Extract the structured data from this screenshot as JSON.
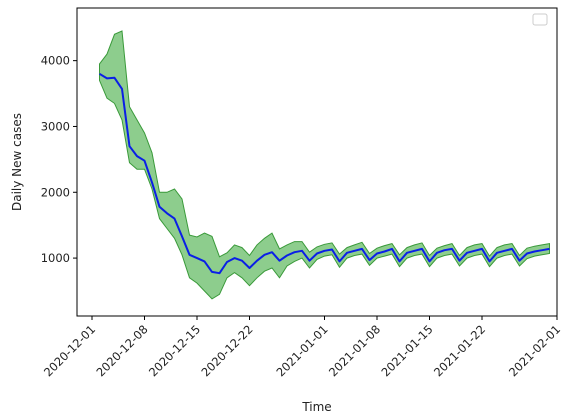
{
  "chart_data": {
    "type": "line",
    "title": "",
    "xlabel": "Time",
    "ylabel": "Daily New cases",
    "xlim": [
      "2020-11-29",
      "2021-02-01"
    ],
    "ylim": [
      120,
      4800
    ],
    "x_ticks": [
      "2020-12-01",
      "2020-12-08",
      "2020-12-15",
      "2020-12-22",
      "2021-01-01",
      "2021-01-08",
      "2021-01-15",
      "2021-01-22",
      "2021-02-01"
    ],
    "y_ticks": [
      1000,
      2000,
      3000,
      4000
    ],
    "grid": false,
    "legend": {
      "placement": "top-right",
      "entries": []
    },
    "colors": {
      "line": "#0a1fe6",
      "band_fill": "#5cb85c",
      "band_edge": "#3a9a3a"
    },
    "series": [
      {
        "kind": "line",
        "x": [
          "2020-12-02",
          "2020-12-03",
          "2020-12-04",
          "2020-12-05",
          "2020-12-06",
          "2020-12-07",
          "2020-12-08",
          "2020-12-09",
          "2020-12-10",
          "2020-12-11",
          "2020-12-12",
          "2020-12-13",
          "2020-12-14",
          "2020-12-15",
          "2020-12-16",
          "2020-12-17",
          "2020-12-18",
          "2020-12-19",
          "2020-12-20",
          "2020-12-21",
          "2020-12-22",
          "2020-12-23",
          "2020-12-24",
          "2020-12-25",
          "2020-12-26",
          "2020-12-27",
          "2020-12-28",
          "2020-12-29",
          "2020-12-30",
          "2020-12-31",
          "2021-01-01",
          "2021-01-02",
          "2021-01-03",
          "2021-01-04",
          "2021-01-05",
          "2021-01-06",
          "2021-01-07",
          "2021-01-08",
          "2021-01-09",
          "2021-01-10",
          "2021-01-11",
          "2021-01-12",
          "2021-01-13",
          "2021-01-14",
          "2021-01-15",
          "2021-01-16",
          "2021-01-17",
          "2021-01-18",
          "2021-01-19",
          "2021-01-20",
          "2021-01-21",
          "2021-01-22",
          "2021-01-23",
          "2021-01-24",
          "2021-01-25",
          "2021-01-26",
          "2021-01-27",
          "2021-01-28",
          "2021-01-29",
          "2021-01-30",
          "2021-01-31"
        ],
        "values": [
          3800,
          3730,
          3740,
          3570,
          2700,
          2550,
          2480,
          2150,
          1780,
          1680,
          1600,
          1330,
          1050,
          1000,
          950,
          790,
          770,
          940,
          1000,
          960,
          850,
          960,
          1050,
          1090,
          960,
          1040,
          1090,
          1110,
          960,
          1070,
          1110,
          1130,
          950,
          1080,
          1110,
          1140,
          970,
          1070,
          1100,
          1140,
          950,
          1080,
          1110,
          1140,
          950,
          1080,
          1120,
          1140,
          960,
          1080,
          1110,
          1140,
          950,
          1080,
          1110,
          1140,
          960,
          1070,
          1100,
          1120,
          1140
        ]
      },
      {
        "kind": "band",
        "x": [
          "2020-12-02",
          "2020-12-03",
          "2020-12-04",
          "2020-12-05",
          "2020-12-06",
          "2020-12-07",
          "2020-12-08",
          "2020-12-09",
          "2020-12-10",
          "2020-12-11",
          "2020-12-12",
          "2020-12-13",
          "2020-12-14",
          "2020-12-15",
          "2020-12-16",
          "2020-12-17",
          "2020-12-18",
          "2020-12-19",
          "2020-12-20",
          "2020-12-21",
          "2020-12-22",
          "2020-12-23",
          "2020-12-24",
          "2020-12-25",
          "2020-12-26",
          "2020-12-27",
          "2020-12-28",
          "2020-12-29",
          "2020-12-30",
          "2020-12-31",
          "2021-01-01",
          "2021-01-02",
          "2021-01-03",
          "2021-01-04",
          "2021-01-05",
          "2021-01-06",
          "2021-01-07",
          "2021-01-08",
          "2021-01-09",
          "2021-01-10",
          "2021-01-11",
          "2021-01-12",
          "2021-01-13",
          "2021-01-14",
          "2021-01-15",
          "2021-01-16",
          "2021-01-17",
          "2021-01-18",
          "2021-01-19",
          "2021-01-20",
          "2021-01-21",
          "2021-01-22",
          "2021-01-23",
          "2021-01-24",
          "2021-01-25",
          "2021-01-26",
          "2021-01-27",
          "2021-01-28",
          "2021-01-29",
          "2021-01-30",
          "2021-01-31"
        ],
        "upper": [
          3950,
          4100,
          4400,
          4450,
          3300,
          3100,
          2900,
          2600,
          2000,
          2000,
          2050,
          1900,
          1350,
          1320,
          1380,
          1330,
          1020,
          1080,
          1200,
          1160,
          1040,
          1200,
          1300,
          1380,
          1140,
          1200,
          1250,
          1250,
          1090,
          1170,
          1210,
          1230,
          1060,
          1160,
          1200,
          1240,
          1070,
          1150,
          1190,
          1220,
          1050,
          1160,
          1200,
          1230,
          1040,
          1150,
          1190,
          1220,
          1040,
          1160,
          1200,
          1220,
          1030,
          1160,
          1200,
          1220,
          1040,
          1150,
          1180,
          1200,
          1220
        ],
        "lower": [
          3700,
          3430,
          3350,
          3100,
          2450,
          2350,
          2350,
          2050,
          1600,
          1450,
          1300,
          1050,
          700,
          620,
          500,
          380,
          450,
          700,
          780,
          700,
          580,
          700,
          800,
          850,
          700,
          880,
          950,
          1000,
          850,
          980,
          1030,
          1050,
          860,
          1000,
          1040,
          1060,
          890,
          1000,
          1030,
          1060,
          870,
          1000,
          1040,
          1060,
          870,
          1000,
          1040,
          1060,
          880,
          1000,
          1040,
          1060,
          870,
          1000,
          1040,
          1060,
          880,
          990,
          1030,
          1050,
          1070
        ]
      }
    ]
  }
}
